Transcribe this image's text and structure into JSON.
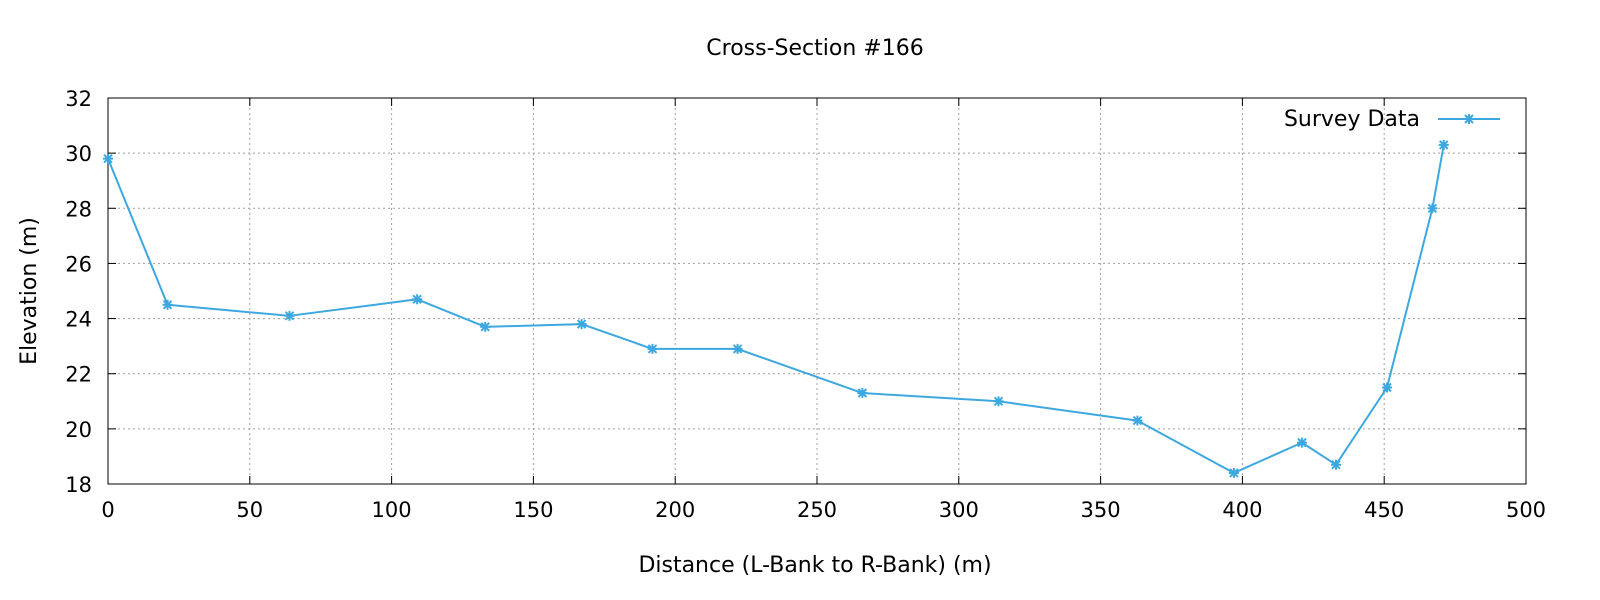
{
  "chart_data": {
    "type": "line",
    "title": "Cross-Section #166",
    "xlabel": "Distance (L-Bank to R-Bank) (m)",
    "ylabel": "Elevation (m)",
    "xlim": [
      0,
      500
    ],
    "ylim": [
      18,
      32
    ],
    "xticks": [
      "0",
      "50",
      "100",
      "150",
      "200",
      "250",
      "300",
      "350",
      "400",
      "450",
      "500"
    ],
    "yticks": [
      "18",
      "20",
      "22",
      "24",
      "26",
      "28",
      "30",
      "32"
    ],
    "grid": true,
    "legend_position": "top-right",
    "series": [
      {
        "name": "Survey Data",
        "color": "#3da8e0",
        "marker": "asterisk",
        "x": [
          0,
          21,
          64,
          109,
          133,
          167,
          192,
          222,
          266,
          314,
          363,
          397,
          421,
          433,
          451,
          467,
          471
        ],
        "y": [
          29.8,
          24.5,
          24.1,
          24.7,
          23.7,
          23.8,
          22.9,
          22.9,
          21.3,
          21.0,
          20.3,
          18.4,
          19.5,
          18.7,
          21.5,
          28.0,
          30.3
        ]
      }
    ]
  }
}
